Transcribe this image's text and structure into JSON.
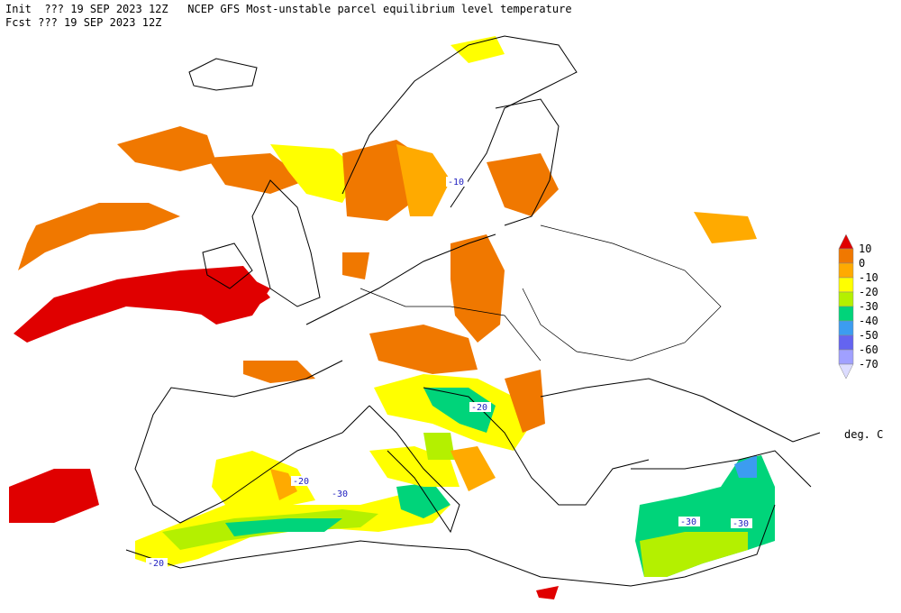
{
  "header": {
    "line1": "Init  ??? 19 SEP 2023 12Z   NCEP GFS Most-unstable parcel equilibrium level temperature",
    "line2": "Fcst ??? 19 SEP 2023 12Z"
  },
  "legend": {
    "labels": [
      "10",
      "0",
      "-10",
      "-20",
      "-30",
      "-40",
      "-50",
      "-60",
      "-70"
    ],
    "colors": [
      "#e00000",
      "#f07800",
      "#ffaa00",
      "#ffff00",
      "#b4f000",
      "#00d47a",
      "#3c9cf0",
      "#6464f0",
      "#a0a0ff",
      "#dcdcff"
    ],
    "units": "deg. C"
  },
  "contour_labels": [
    "-10",
    "-20",
    "-20",
    "-30",
    "-20",
    "-30",
    "-30"
  ]
}
